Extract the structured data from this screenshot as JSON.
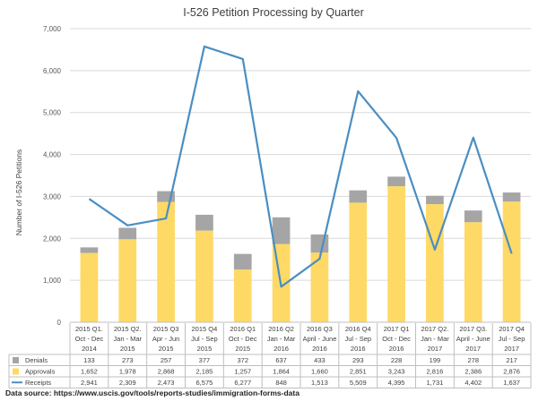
{
  "chart_data": {
    "type": "bar",
    "title": "I-526 Petition Processing by Quarter",
    "ylabel": "Number of I-526 Petitions",
    "xlabel": "",
    "ylim": [
      0,
      7000
    ],
    "y_ticks": [
      "0",
      "1,000",
      "2,000",
      "3,000",
      "4,000",
      "5,000",
      "6,000",
      "7,000"
    ],
    "y_tick_values": [
      0,
      1000,
      2000,
      3000,
      4000,
      5000,
      6000,
      7000
    ],
    "grid": true,
    "categories": [
      [
        "2015 Q1.",
        "Oct - Dec",
        "2014"
      ],
      [
        "2015 Q2.",
        "Jan - Mar",
        "2015"
      ],
      [
        "2015 Q3",
        "Apr - Jun",
        "2015"
      ],
      [
        "2015 Q4",
        "Jul - Sep",
        "2015"
      ],
      [
        "2016 Q1",
        "Oct - Dec",
        "2015"
      ],
      [
        "2016 Q2",
        "Jan - Mar",
        "2016"
      ],
      [
        "2016 Q3",
        "April - June",
        "2016"
      ],
      [
        "2016 Q4",
        "Jul - Sep",
        "2016"
      ],
      [
        "2017 Q1",
        "Oct - Dec",
        "2016"
      ],
      [
        "2017 Q2.",
        "Jan - Mar",
        "2017"
      ],
      [
        "2017 Q3.",
        "April - June",
        "2017"
      ],
      [
        "2017 Q4",
        "Jul - Sep",
        "2017"
      ]
    ],
    "series": [
      {
        "name": "Denials",
        "kind": "bar",
        "color": "#a5a5a5",
        "values": [
          133,
          273,
          257,
          377,
          372,
          637,
          433,
          293,
          228,
          199,
          278,
          217
        ],
        "labels": [
          "133",
          "273",
          "257",
          "377",
          "372",
          "637",
          "433",
          "293",
          "228",
          "199",
          "278",
          "217"
        ]
      },
      {
        "name": "Approvals",
        "kind": "bar",
        "color": "#ffd966",
        "values": [
          1652,
          1978,
          2868,
          2185,
          1257,
          1864,
          1660,
          2851,
          3243,
          2816,
          2386,
          2876
        ],
        "labels": [
          "1,652",
          "1,978",
          "2,868",
          "2,185",
          "1,257",
          "1,864",
          "1,660",
          "2,851",
          "3,243",
          "2,816",
          "2,386",
          "2,876"
        ]
      },
      {
        "name": "Receipts",
        "kind": "line",
        "color": "#4a8ec2",
        "values": [
          2941,
          2309,
          2473,
          6575,
          6277,
          848,
          1513,
          5509,
          4395,
          1731,
          4402,
          1637
        ],
        "labels": [
          "2,941",
          "2,309",
          "2,473",
          "6,575",
          "6,277",
          "848",
          "1,513",
          "5,509",
          "4,395",
          "1,731",
          "4,402",
          "1,637"
        ]
      }
    ],
    "legend": "data table below chart"
  },
  "source_text": "Data source: https://www.uscis.gov/tools/reports-studies/immigration-forms-data"
}
